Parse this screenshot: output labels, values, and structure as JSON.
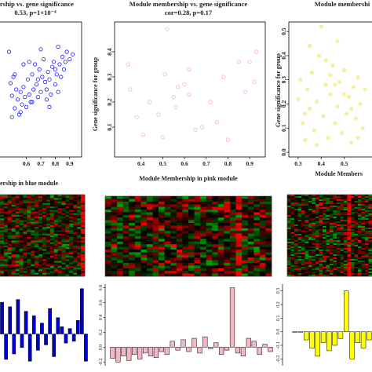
{
  "chart_data": [
    {
      "type": "scatter",
      "title": "ership vs. gene significance",
      "subtitle": "0.53, p=1×10⁻⁴",
      "xlabel": "ership in blue module",
      "ylabel": "",
      "xticks": [
        "0.6",
        "0.7",
        "0.8",
        "0.9"
      ],
      "xlim": [
        0.45,
        0.95
      ],
      "ylim": [
        0,
        1
      ],
      "color": "#1a1aff",
      "marker": "open-circle",
      "points": [
        [
          0.48,
          0.8
        ],
        [
          0.49,
          0.55
        ],
        [
          0.5,
          0.45
        ],
        [
          0.51,
          0.6
        ],
        [
          0.52,
          0.35
        ],
        [
          0.53,
          0.5
        ],
        [
          0.54,
          0.42
        ],
        [
          0.55,
          0.3
        ],
        [
          0.56,
          0.48
        ],
        [
          0.57,
          0.38
        ],
        [
          0.58,
          0.52
        ],
        [
          0.59,
          0.44
        ],
        [
          0.6,
          0.36
        ],
        [
          0.61,
          0.58
        ],
        [
          0.62,
          0.46
        ],
        [
          0.63,
          0.4
        ],
        [
          0.64,
          0.62
        ],
        [
          0.65,
          0.5
        ],
        [
          0.66,
          0.7
        ],
        [
          0.67,
          0.54
        ],
        [
          0.68,
          0.44
        ],
        [
          0.69,
          0.66
        ],
        [
          0.7,
          0.48
        ],
        [
          0.71,
          0.6
        ],
        [
          0.72,
          0.74
        ],
        [
          0.73,
          0.56
        ],
        [
          0.74,
          0.5
        ],
        [
          0.75,
          0.64
        ],
        [
          0.76,
          0.58
        ],
        [
          0.77,
          0.46
        ],
        [
          0.78,
          0.68
        ],
        [
          0.79,
          0.72
        ],
        [
          0.8,
          0.54
        ],
        [
          0.81,
          0.62
        ],
        [
          0.82,
          0.84
        ],
        [
          0.83,
          0.7
        ],
        [
          0.84,
          0.6
        ],
        [
          0.85,
          0.76
        ],
        [
          0.86,
          0.66
        ],
        [
          0.87,
          0.72
        ],
        [
          0.88,
          0.8
        ],
        [
          0.9,
          0.74
        ],
        [
          0.92,
          0.78
        ],
        [
          0.52,
          0.62
        ],
        [
          0.58,
          0.7
        ],
        [
          0.64,
          0.4
        ],
        [
          0.7,
          0.82
        ],
        [
          0.76,
          0.36
        ],
        [
          0.82,
          0.48
        ],
        [
          0.5,
          0.28
        ],
        [
          0.56,
          0.32
        ],
        [
          0.62,
          0.72
        ],
        [
          0.68,
          0.58
        ],
        [
          0.74,
          0.42
        ],
        [
          0.8,
          0.66
        ]
      ]
    },
    {
      "type": "scatter",
      "title": "Module membership vs. gene significance",
      "subtitle": "cor=0.28, p=0.17",
      "xlabel": "Module Membership in pink module",
      "ylabel": "Gene significance for group",
      "xticks": [
        "0.4",
        "0.5",
        "0.6",
        "0.7",
        "0.8",
        "0.9"
      ],
      "yticks": [
        "0.1",
        "0.2",
        "0.3",
        "0.4"
      ],
      "xlim": [
        0.3,
        0.95
      ],
      "ylim": [
        0.0,
        0.5
      ],
      "color": "#f4b6c2",
      "marker": "open-circle",
      "points": [
        [
          0.34,
          0.35
        ],
        [
          0.35,
          0.25
        ],
        [
          0.38,
          0.14
        ],
        [
          0.41,
          0.07
        ],
        [
          0.44,
          0.2
        ],
        [
          0.48,
          0.15
        ],
        [
          0.5,
          0.06
        ],
        [
          0.51,
          0.31
        ],
        [
          0.52,
          0.49
        ],
        [
          0.55,
          0.22
        ],
        [
          0.56,
          0.18
        ],
        [
          0.6,
          0.27
        ],
        [
          0.62,
          0.23
        ],
        [
          0.65,
          0.09
        ],
        [
          0.68,
          0.1
        ],
        [
          0.72,
          0.2
        ],
        [
          0.75,
          0.12
        ],
        [
          0.78,
          0.3
        ],
        [
          0.8,
          0.05
        ],
        [
          0.85,
          0.36
        ],
        [
          0.88,
          0.24
        ],
        [
          0.9,
          0.36
        ],
        [
          0.92,
          0.28
        ],
        [
          0.93,
          0.4
        ],
        [
          0.62,
          0.33
        ],
        [
          0.57,
          0.26
        ]
      ]
    },
    {
      "type": "scatter",
      "title": "Module membershi",
      "xlabel": "Module Members",
      "ylabel": "Gene significance for group",
      "xticks": [
        "0.3",
        "0.4",
        "0.5"
      ],
      "yticks": [
        "0.0",
        "0.1",
        "0.2",
        "0.3",
        "0.4",
        "0.5"
      ],
      "xlim": [
        0.28,
        0.6
      ],
      "ylim": [
        0.0,
        0.52
      ],
      "color": "#f5f0a0",
      "marker": "filled-circle",
      "points": [
        [
          0.3,
          0.22
        ],
        [
          0.31,
          0.3
        ],
        [
          0.32,
          0.12
        ],
        [
          0.33,
          0.05
        ],
        [
          0.34,
          0.26
        ],
        [
          0.35,
          0.18
        ],
        [
          0.36,
          0.33
        ],
        [
          0.37,
          0.09
        ],
        [
          0.38,
          0.21
        ],
        [
          0.39,
          0.4
        ],
        [
          0.4,
          0.52
        ],
        [
          0.41,
          0.15
        ],
        [
          0.42,
          0.28
        ],
        [
          0.43,
          0.06
        ],
        [
          0.44,
          0.24
        ],
        [
          0.45,
          0.36
        ],
        [
          0.46,
          0.12
        ],
        [
          0.47,
          0.19
        ],
        [
          0.48,
          0.29
        ],
        [
          0.49,
          0.08
        ],
        [
          0.5,
          0.34
        ],
        [
          0.51,
          0.16
        ],
        [
          0.52,
          0.23
        ],
        [
          0.53,
          0.04
        ],
        [
          0.54,
          0.27
        ],
        [
          0.55,
          0.14
        ],
        [
          0.56,
          0.31
        ],
        [
          0.57,
          0.2
        ],
        [
          0.58,
          0.1
        ],
        [
          0.59,
          0.26
        ],
        [
          0.35,
          0.44
        ],
        [
          0.42,
          0.38
        ],
        [
          0.47,
          0.46
        ],
        [
          0.53,
          0.18
        ],
        [
          0.38,
          0.03
        ],
        [
          0.44,
          0.32
        ],
        [
          0.5,
          0.24
        ],
        [
          0.56,
          0.06
        ],
        [
          0.33,
          0.16
        ],
        [
          0.46,
          0.28
        ]
      ]
    },
    {
      "type": "heatmap",
      "colors": {
        "low": "#00a000",
        "mid": "#000000",
        "high": "#ff0000"
      },
      "rows": 48,
      "cols": 22,
      "seed": 11,
      "hot_col": 21
    },
    {
      "type": "heatmap",
      "colors": {
        "low": "#00a000",
        "mid": "#000000",
        "high": "#ff0000"
      },
      "rows": 30,
      "cols": 28,
      "seed": 23,
      "hot_col": 22
    },
    {
      "type": "heatmap",
      "colors": {
        "low": "#00a000",
        "mid": "#000000",
        "high": "#ff0000"
      },
      "rows": 52,
      "cols": 24,
      "seed": 37,
      "hot_col": 17
    },
    {
      "type": "bar",
      "color": "#0000cc",
      "ylim": [
        -0.35,
        0.55
      ],
      "values": [
        0.35,
        -0.28,
        0.3,
        -0.22,
        0.38,
        -0.15,
        0.25,
        -0.3,
        0.2,
        -0.18,
        0.12,
        -0.12,
        0.28,
        -0.25,
        0.18,
        0.08,
        -0.1,
        0.06,
        -0.08,
        0.15,
        0.5,
        -0.3
      ]
    },
    {
      "type": "bar",
      "color": "#f4b6c2",
      "ylim": [
        -0.25,
        0.85
      ],
      "yticks": [
        "-0.2",
        "0.0",
        "0.2",
        "0.4",
        "0.6",
        "0.8"
      ],
      "values": [
        -0.15,
        -0.2,
        -0.12,
        -0.18,
        -0.1,
        -0.16,
        -0.08,
        -0.12,
        -0.14,
        -0.06,
        -0.1,
        0.08,
        -0.04,
        0.1,
        -0.06,
        0.12,
        -0.08,
        0.14,
        -0.02,
        0.06,
        -0.1,
        -0.04,
        0.8,
        -0.08,
        -0.12,
        0.12,
        0.08,
        -0.1,
        0.04,
        -0.06
      ]
    },
    {
      "type": "bar",
      "color": "#ffff00",
      "ylim": [
        -0.25,
        0.35
      ],
      "yticks": [
        "-0.2",
        "-0.1",
        "0.0",
        "0.1",
        "0.2",
        "0.3"
      ],
      "values": [
        0.0,
        0.0,
        -0.06,
        -0.12,
        -0.18,
        -0.08,
        -0.14,
        -0.1,
        -0.05,
        0.3,
        -0.2,
        -0.08,
        -0.12,
        -0.06
      ]
    }
  ]
}
